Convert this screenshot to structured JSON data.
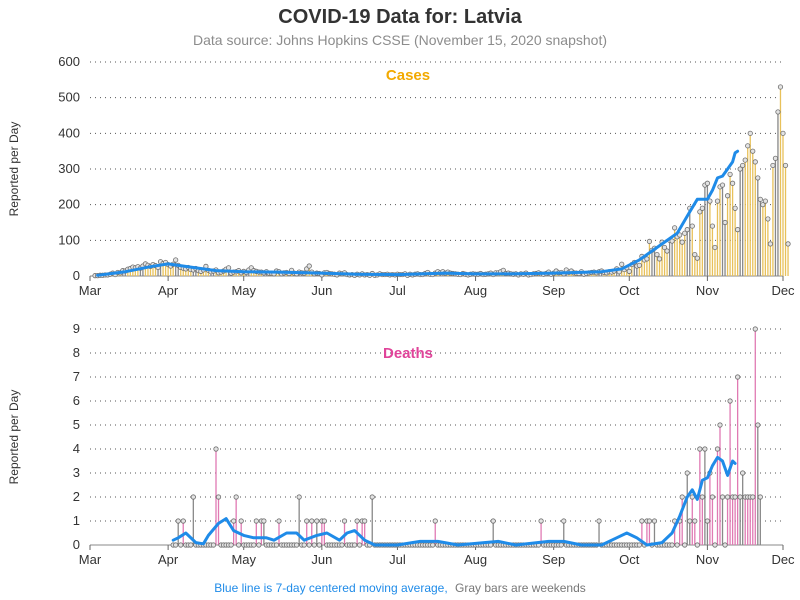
{
  "title": "COVID-19 Data for: Latvia",
  "subtitle": "Data source: Johns Hopkins CSSE (November 15, 2020 snapshot)",
  "footnote": {
    "blue_text": "Blue line is 7-day centered moving average,",
    "gray_text": "Gray bars are weekends"
  },
  "colors": {
    "cases": "#f2a900",
    "cases_bar": "#e8c15a",
    "deaths": "#e0449a",
    "deaths_bar": "#e07ab3",
    "weekend_bar": "#888888",
    "moving_average": "#1f8be8",
    "marker_fill": "#e3e3e3",
    "marker_stroke": "#6e6e6e",
    "foot_blue": "#1f8be8",
    "foot_gray": "#777777"
  },
  "chart_data": [
    {
      "type": "bar",
      "panel_title": "Cases",
      "ylabel": "Reported per Day",
      "ylim": [
        0,
        600
      ],
      "yticks": [
        0,
        100,
        200,
        300,
        400,
        500,
        600
      ],
      "xlim": [
        "2020-03-01",
        "2020-12-01"
      ],
      "xticks": [
        {
          "date": "2020-03-01",
          "label": "Mar"
        },
        {
          "date": "2020-04-01",
          "label": "Apr"
        },
        {
          "date": "2020-05-01",
          "label": "May"
        },
        {
          "date": "2020-06-01",
          "label": "Jun"
        },
        {
          "date": "2020-07-01",
          "label": "Jul"
        },
        {
          "date": "2020-08-01",
          "label": "Aug"
        },
        {
          "date": "2020-09-01",
          "label": "Sep"
        },
        {
          "date": "2020-10-01",
          "label": "Oct"
        },
        {
          "date": "2020-11-01",
          "label": "Nov"
        },
        {
          "date": "2020-12-01",
          "label": "Dec"
        }
      ],
      "grid": true,
      "start_date": "2020-03-03",
      "daily_values": [
        1,
        1,
        2,
        2,
        3,
        3,
        5,
        8,
        4,
        10,
        9,
        15,
        14,
        19,
        21,
        25,
        23,
        26,
        22,
        28,
        34,
        30,
        27,
        32,
        29,
        24,
        40,
        35,
        38,
        32,
        28,
        33,
        45,
        30,
        24,
        22,
        20,
        24,
        18,
        17,
        21,
        15,
        13,
        17,
        27,
        16,
        12,
        14,
        17,
        9,
        11,
        14,
        19,
        23,
        8,
        11,
        12,
        15,
        9,
        13,
        10,
        17,
        23,
        15,
        13,
        11,
        11,
        9,
        12,
        8,
        8,
        6,
        14,
        12,
        6,
        9,
        10,
        7,
        16,
        8,
        6,
        11,
        9,
        8,
        20,
        28,
        11,
        6,
        8,
        7,
        3,
        9,
        10,
        7,
        6,
        5,
        3,
        8,
        6,
        9,
        4,
        3,
        4,
        2,
        5,
        3,
        6,
        3,
        4,
        2,
        7,
        2,
        3,
        6,
        4,
        4,
        5,
        3,
        4,
        3,
        5,
        4,
        4,
        6,
        2,
        5,
        3,
        5,
        6,
        4,
        4,
        7,
        10,
        5,
        4,
        8,
        12,
        9,
        12,
        8,
        11,
        8,
        7,
        6,
        5,
        4,
        7,
        5,
        3,
        5,
        6,
        5,
        5,
        7,
        4,
        5,
        6,
        8,
        4,
        9,
        9,
        12,
        16,
        7,
        8,
        6,
        5,
        6,
        3,
        6,
        5,
        8,
        3,
        4,
        6,
        7,
        9,
        6,
        5,
        7,
        11,
        5,
        8,
        14,
        9,
        10,
        6,
        17,
        10,
        14,
        9,
        8,
        7,
        12,
        5,
        7,
        9,
        10,
        11,
        9,
        12,
        14,
        10,
        9,
        12,
        11,
        14,
        20,
        12,
        33,
        18,
        23,
        13,
        32,
        38,
        28,
        30,
        55,
        45,
        48,
        97,
        72,
        78,
        60,
        48,
        95,
        80,
        70,
        100,
        98,
        135,
        110,
        115,
        95,
        120,
        130,
        190,
        140,
        60,
        50,
        180,
        190,
        255,
        260,
        210,
        140,
        80,
        210,
        250,
        255,
        150,
        225,
        285,
        260,
        190,
        130,
        300,
        310,
        325,
        365,
        400,
        350,
        320,
        275,
        215,
        200,
        210,
        160,
        90,
        310,
        330,
        460,
        530,
        400,
        310,
        90
      ],
      "moving_average": [
        [
          "2020-03-04",
          2
        ],
        [
          "2020-03-15",
          12
        ],
        [
          "2020-03-25",
          26
        ],
        [
          "2020-04-01",
          34
        ],
        [
          "2020-04-10",
          25
        ],
        [
          "2020-04-20",
          15
        ],
        [
          "2020-05-01",
          12
        ],
        [
          "2020-05-15",
          11
        ],
        [
          "2020-06-01",
          8
        ],
        [
          "2020-06-15",
          5
        ],
        [
          "2020-07-01",
          4
        ],
        [
          "2020-07-20",
          8
        ],
        [
          "2020-08-01",
          6
        ],
        [
          "2020-08-15",
          6
        ],
        [
          "2020-09-01",
          8
        ],
        [
          "2020-09-20",
          12
        ],
        [
          "2020-09-28",
          20
        ],
        [
          "2020-10-05",
          45
        ],
        [
          "2020-10-10",
          70
        ],
        [
          "2020-10-15",
          95
        ],
        [
          "2020-10-20",
          120
        ],
        [
          "2020-10-25",
          180
        ],
        [
          "2020-10-28",
          215
        ],
        [
          "2020-11-01",
          215
        ],
        [
          "2020-11-03",
          240
        ],
        [
          "2020-11-05",
          275
        ],
        [
          "2020-11-07",
          280
        ],
        [
          "2020-11-09",
          300
        ],
        [
          "2020-11-11",
          320
        ],
        [
          "2020-11-12",
          345
        ],
        [
          "2020-11-13",
          350
        ]
      ]
    },
    {
      "type": "bar",
      "panel_title": "Deaths",
      "ylabel": "Reported per Day",
      "ylim": [
        0,
        9
      ],
      "yticks": [
        0,
        1,
        2,
        3,
        4,
        5,
        6,
        7,
        8,
        9
      ],
      "xlim": [
        "2020-03-01",
        "2020-12-01"
      ],
      "xticks": [
        {
          "date": "2020-03-01",
          "label": "Mar"
        },
        {
          "date": "2020-04-01",
          "label": "Apr"
        },
        {
          "date": "2020-05-01",
          "label": "May"
        },
        {
          "date": "2020-06-01",
          "label": "Jun"
        },
        {
          "date": "2020-07-01",
          "label": "Jul"
        },
        {
          "date": "2020-08-01",
          "label": "Aug"
        },
        {
          "date": "2020-09-01",
          "label": "Sep"
        },
        {
          "date": "2020-10-01",
          "label": "Oct"
        },
        {
          "date": "2020-11-01",
          "label": "Nov"
        },
        {
          "date": "2020-12-01",
          "label": "Dec"
        }
      ],
      "grid": true,
      "start_date": "2020-04-03",
      "daily_values": [
        0,
        0,
        1,
        0,
        1,
        0,
        0,
        0,
        2,
        0,
        0,
        0,
        0,
        0,
        0,
        0,
        0,
        4,
        2,
        0,
        0,
        0,
        0,
        0,
        1,
        2,
        0,
        1,
        0,
        0,
        0,
        0,
        0,
        1,
        0,
        1,
        1,
        0,
        0,
        0,
        0,
        0,
        1,
        0,
        0,
        0,
        0,
        0,
        0,
        0,
        2,
        0,
        0,
        1,
        0,
        1,
        0,
        1,
        0,
        1,
        1,
        0,
        0,
        0,
        0,
        0,
        0,
        0,
        1,
        0,
        0,
        0,
        0,
        1,
        0,
        1,
        1,
        0,
        0,
        2,
        0,
        0,
        0,
        0,
        0,
        0,
        0,
        0,
        0,
        0,
        0,
        0,
        0,
        0,
        0,
        0,
        0,
        0,
        0,
        0,
        0,
        0,
        0,
        0,
        1,
        0,
        0,
        0,
        0,
        0,
        0,
        0,
        0,
        0,
        0,
        0,
        0,
        0,
        0,
        0,
        0,
        0,
        0,
        0,
        0,
        0,
        0,
        1,
        0,
        0,
        0,
        0,
        0,
        0,
        0,
        0,
        0,
        0,
        0,
        0,
        0,
        0,
        0,
        0,
        0,
        0,
        1,
        0,
        0,
        0,
        0,
        0,
        0,
        0,
        0,
        1,
        0,
        0,
        0,
        0,
        0,
        0,
        0,
        0,
        0,
        0,
        0,
        0,
        0,
        1,
        0,
        0,
        0,
        0,
        0,
        0,
        0,
        0,
        0,
        0,
        0,
        0,
        0,
        0,
        0,
        0,
        1,
        0,
        1,
        1,
        0,
        1,
        0,
        0,
        0,
        0,
        0,
        0,
        0,
        1,
        0,
        1,
        2,
        0,
        3,
        1,
        2,
        1,
        0,
        4,
        2,
        4,
        1,
        3,
        2,
        0,
        4,
        5,
        2,
        0,
        2,
        6,
        2,
        2,
        7,
        2,
        3,
        2,
        2,
        2,
        2,
        9,
        5,
        2
      ],
      "moving_average": [
        [
          "2020-04-03",
          0.2
        ],
        [
          "2020-04-05",
          0.3
        ],
        [
          "2020-04-08",
          0.5
        ],
        [
          "2020-04-12",
          0.1
        ],
        [
          "2020-04-15",
          0.05
        ],
        [
          "2020-04-17",
          0.4
        ],
        [
          "2020-04-21",
          0.9
        ],
        [
          "2020-04-24",
          1.1
        ],
        [
          "2020-04-27",
          0.6
        ],
        [
          "2020-05-01",
          0.4
        ],
        [
          "2020-05-05",
          0.3
        ],
        [
          "2020-05-10",
          0.3
        ],
        [
          "2020-05-13",
          0.2
        ],
        [
          "2020-05-18",
          0.5
        ],
        [
          "2020-05-22",
          0.5
        ],
        [
          "2020-05-25",
          0.2
        ],
        [
          "2020-05-30",
          0.4
        ],
        [
          "2020-06-03",
          0.5
        ],
        [
          "2020-06-08",
          0.2
        ],
        [
          "2020-06-11",
          0.5
        ],
        [
          "2020-06-14",
          0.6
        ],
        [
          "2020-06-18",
          0.2
        ],
        [
          "2020-06-22",
          0.0
        ],
        [
          "2020-07-01",
          0.0
        ],
        [
          "2020-07-10",
          0.15
        ],
        [
          "2020-07-17",
          0.15
        ],
        [
          "2020-07-25",
          0.0
        ],
        [
          "2020-08-10",
          0.15
        ],
        [
          "2020-08-17",
          0.0
        ],
        [
          "2020-08-30",
          0.15
        ],
        [
          "2020-09-05",
          0.15
        ],
        [
          "2020-09-12",
          0.0
        ],
        [
          "2020-09-20",
          0.0
        ],
        [
          "2020-09-26",
          0.3
        ],
        [
          "2020-09-30",
          0.5
        ],
        [
          "2020-10-04",
          0.3
        ],
        [
          "2020-10-08",
          0.0
        ],
        [
          "2020-10-14",
          0.1
        ],
        [
          "2020-10-18",
          0.5
        ],
        [
          "2020-10-21",
          1.2
        ],
        [
          "2020-10-24",
          2.0
        ],
        [
          "2020-10-26",
          2.3
        ],
        [
          "2020-10-28",
          1.9
        ],
        [
          "2020-10-30",
          2.7
        ],
        [
          "2020-11-01",
          2.8
        ],
        [
          "2020-11-03",
          3.3
        ],
        [
          "2020-11-05",
          3.65
        ],
        [
          "2020-11-07",
          3.5
        ],
        [
          "2020-11-09",
          2.9
        ],
        [
          "2020-11-11",
          3.5
        ],
        [
          "2020-11-12",
          3.4
        ]
      ]
    }
  ]
}
